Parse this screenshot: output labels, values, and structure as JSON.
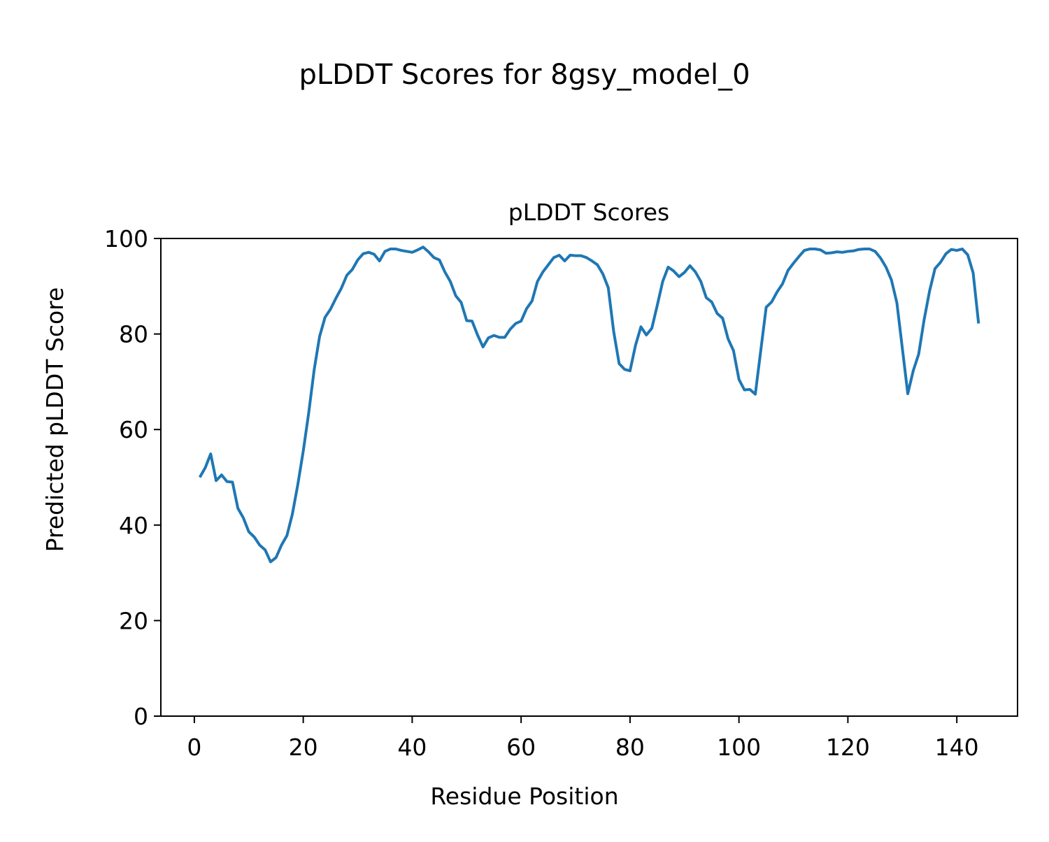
{
  "chart_data": {
    "type": "line",
    "suptitle": "pLDDT Scores for 8gsy_model_0",
    "title": "pLDDT Scores",
    "xlabel": "Residue Position",
    "ylabel": "Predicted pLDDT Score",
    "x": [
      1,
      2,
      3,
      4,
      5,
      6,
      7,
      8,
      9,
      10,
      11,
      12,
      13,
      14,
      15,
      16,
      17,
      18,
      19,
      20,
      21,
      22,
      23,
      24,
      25,
      26,
      27,
      28,
      29,
      30,
      31,
      32,
      33,
      34,
      35,
      36,
      37,
      38,
      39,
      40,
      41,
      42,
      43,
      44,
      45,
      46,
      47,
      48,
      49,
      50,
      51,
      52,
      53,
      54,
      55,
      56,
      57,
      58,
      59,
      60,
      61,
      62,
      63,
      64,
      65,
      66,
      67,
      68,
      69,
      70,
      71,
      72,
      73,
      74,
      75,
      76,
      77,
      78,
      79,
      80,
      81,
      82,
      83,
      84,
      85,
      86,
      87,
      88,
      89,
      90,
      91,
      92,
      93,
      94,
      95,
      96,
      97,
      98,
      99,
      100,
      101,
      102,
      103,
      104,
      105,
      106,
      107,
      108,
      109,
      110,
      111,
      112,
      113,
      114,
      115,
      116,
      117,
      118,
      119,
      120,
      121,
      122,
      123,
      124,
      125,
      126,
      127,
      128,
      129,
      130,
      131,
      132,
      133,
      134,
      135,
      136,
      137,
      138,
      139,
      140,
      141,
      142,
      143,
      144
    ],
    "series": [
      {
        "name": "pLDDT",
        "color": "#1f77b4",
        "values": [
          50,
          52,
          54.9,
          49.3,
          50.5,
          49.1,
          49,
          43.5,
          41.5,
          38.6,
          37.5,
          35.8,
          34.8,
          32.3,
          33.2,
          35.8,
          37.8,
          42.3,
          48.5,
          55.5,
          63.5,
          72.5,
          79.5,
          83.5,
          85.2,
          87.5,
          89.6,
          92.3,
          93.5,
          95.5,
          96.8,
          97.1,
          96.7,
          95.3,
          97.3,
          97.8,
          97.8,
          97.5,
          97.3,
          97.1,
          97.6,
          98.2,
          97.2,
          96,
          95.5,
          93,
          91,
          88,
          86.6,
          82.8,
          82.7,
          79.8,
          77.3,
          79.2,
          79.7,
          79.3,
          79.3,
          81,
          82.2,
          82.7,
          85.3,
          86.9,
          91,
          93,
          94.5,
          96,
          96.5,
          95.3,
          96.5,
          96.4,
          96.4,
          96,
          95.3,
          94.5,
          92.6,
          89.7,
          80.5,
          73.8,
          72.6,
          72.3,
          77.6,
          81.5,
          79.8,
          81.2,
          86,
          91,
          94,
          93.2,
          92,
          92.9,
          94.3,
          93,
          91,
          87.6,
          86.7,
          84.3,
          83.3,
          79,
          76.5,
          70.5,
          68.3,
          68.4,
          67.4,
          76.5,
          85.6,
          86.7,
          88.8,
          90.5,
          93.3,
          94.8,
          96.2,
          97.5,
          97.8,
          97.8,
          97.6,
          96.9,
          97,
          97.2,
          97.1,
          97.3,
          97.4,
          97.7,
          97.8,
          97.8,
          97.3,
          95.9,
          94,
          91.3,
          86.5,
          77,
          67.5,
          72.3,
          75.8,
          83,
          89,
          93.7,
          95,
          96.8,
          97.7,
          97.5,
          97.8,
          96.6,
          92.8,
          82.2
        ]
      }
    ],
    "xlim": [
      -6.15,
      151.15
    ],
    "xticks": [
      0,
      20,
      40,
      60,
      80,
      100,
      120,
      140
    ],
    "ylim": [
      0,
      100
    ],
    "yticks": [
      0,
      20,
      40,
      60,
      80,
      100
    ]
  }
}
